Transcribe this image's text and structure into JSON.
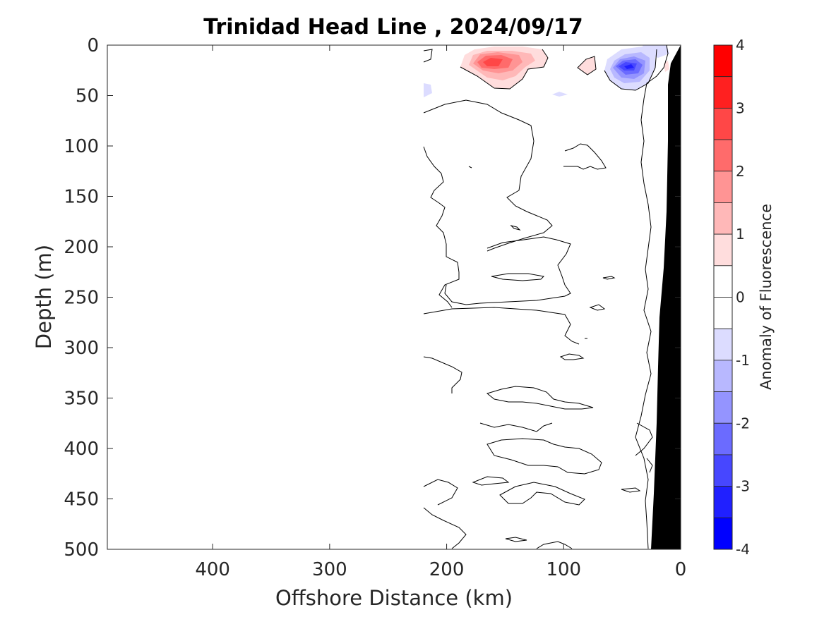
{
  "chart_data": {
    "type": "heatmap",
    "subtype": "filled-contour section",
    "title": "Trinidad Head Line , 2024/09/17",
    "xlabel": "Offshore Distance (km)",
    "ylabel": "Depth (m)",
    "xlim": [
      490,
      0
    ],
    "ylim": [
      500,
      0
    ],
    "x_reversed": true,
    "y_reversed": true,
    "x_ticks": [
      400,
      300,
      200,
      100,
      0
    ],
    "x_tick_labels": [
      "400",
      "300",
      "200",
      "100",
      "0"
    ],
    "y_ticks": [
      0,
      50,
      100,
      150,
      200,
      250,
      300,
      350,
      400,
      450,
      500
    ],
    "y_tick_labels": [
      "0",
      "50",
      "100",
      "150",
      "200",
      "250",
      "300",
      "350",
      "400",
      "450",
      "500"
    ],
    "data_extent_km": [
      0,
      220
    ],
    "colorbar": {
      "label": "Anomaly of Fluorescence",
      "range": [
        -4,
        4
      ],
      "ticks": [
        4,
        3,
        2,
        1,
        0,
        -1,
        -2,
        -3,
        -4
      ],
      "tick_labels": [
        "4",
        "3",
        "2",
        "1",
        "0",
        "-1",
        "-2",
        "-3",
        "-4"
      ],
      "levels": [
        {
          "from": 3.5,
          "to": 4.0,
          "color": "#ff0000"
        },
        {
          "from": 3.0,
          "to": 3.5,
          "color": "#ff2020"
        },
        {
          "from": 2.5,
          "to": 3.0,
          "color": "#ff4747"
        },
        {
          "from": 2.0,
          "to": 2.5,
          "color": "#ff6b6b"
        },
        {
          "from": 1.5,
          "to": 2.0,
          "color": "#ff9494"
        },
        {
          "from": 1.0,
          "to": 1.5,
          "color": "#ffb8b8"
        },
        {
          "from": 0.5,
          "to": 1.0,
          "color": "#ffdddd"
        },
        {
          "from": 0.0,
          "to": 0.5,
          "color": "#ffffff"
        },
        {
          "from": -0.5,
          "to": 0.0,
          "color": "#ffffff"
        },
        {
          "from": -1.0,
          "to": -0.5,
          "color": "#dcdcff"
        },
        {
          "from": -1.5,
          "to": -1.0,
          "color": "#b8b8ff"
        },
        {
          "from": -2.0,
          "to": -1.5,
          "color": "#9494ff"
        },
        {
          "from": -2.5,
          "to": -2.0,
          "color": "#6b6bff"
        },
        {
          "from": -3.0,
          "to": -2.5,
          "color": "#4747ff"
        },
        {
          "from": -3.5,
          "to": -3.0,
          "color": "#2020ff"
        },
        {
          "from": -4.0,
          "to": -3.5,
          "color": "#0000ff"
        }
      ]
    },
    "features": [
      {
        "name": "positive anomaly core",
        "center_km": 160,
        "center_depth_m": 20,
        "peak": 2.5
      },
      {
        "name": "negative anomaly core",
        "center_km": 40,
        "center_depth_m": 22,
        "peak": -3.0
      },
      {
        "name": "bathymetry (seafloor)",
        "color": "#000000"
      }
    ],
    "grid": false,
    "colors": {
      "contour_line": "#000000",
      "seafloor": "#000000",
      "axis": "#262626"
    }
  }
}
